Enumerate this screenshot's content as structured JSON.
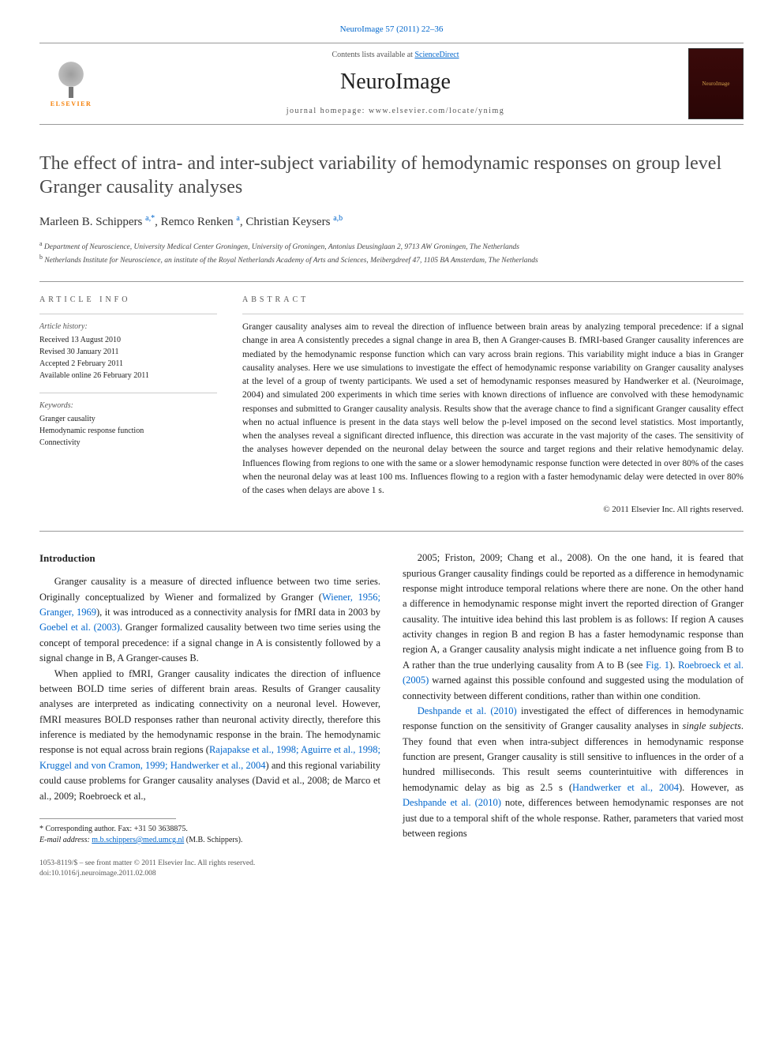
{
  "journal_ref_link": "NeuroImage 57 (2011) 22–36",
  "header": {
    "contents_prefix": "Contents lists available at ",
    "contents_link": "ScienceDirect",
    "journal_name": "NeuroImage",
    "homepage_prefix": "journal homepage: ",
    "homepage_url": "www.elsevier.com/locate/ynimg",
    "elsevier_label": "ELSEVIER",
    "cover_label": "NeuroImage"
  },
  "title": "The effect of intra- and inter-subject variability of hemodynamic responses on group level Granger causality analyses",
  "authors_html": "Marleen B. Schippers <sup>a,*</sup>, Remco Renken <sup>a</sup>, Christian Keysers <sup>a,b</sup>",
  "affiliations": {
    "a": "Department of Neuroscience, University Medical Center Groningen, University of Groningen, Antonius Deusinglaan 2, 9713 AW Groningen, The Netherlands",
    "b": "Netherlands Institute for Neuroscience, an institute of the Royal Netherlands Academy of Arts and Sciences, Meibergdreef 47, 1105 BA Amsterdam, The Netherlands"
  },
  "article_info": {
    "heading": "ARTICLE INFO",
    "history_label": "Article history:",
    "received": "Received 13 August 2010",
    "revised": "Revised 30 January 2011",
    "accepted": "Accepted 2 February 2011",
    "online": "Available online 26 February 2011",
    "keywords_label": "Keywords:",
    "keywords": [
      "Granger causality",
      "Hemodynamic response function",
      "Connectivity"
    ]
  },
  "abstract": {
    "heading": "ABSTRACT",
    "text": "Granger causality analyses aim to reveal the direction of influence between brain areas by analyzing temporal precedence: if a signal change in area A consistently precedes a signal change in area B, then A Granger-causes B. fMRI-based Granger causality inferences are mediated by the hemodynamic response function which can vary across brain regions. This variability might induce a bias in Granger causality analyses. Here we use simulations to investigate the effect of hemodynamic response variability on Granger causality analyses at the level of a group of twenty participants. We used a set of hemodynamic responses measured by Handwerker et al. (Neuroimage, 2004) and simulated 200 experiments in which time series with known directions of influence are convolved with these hemodynamic responses and submitted to Granger causality analysis. Results show that the average chance to find a significant Granger causality effect when no actual influence is present in the data stays well below the p-level imposed on the second level statistics. Most importantly, when the analyses reveal a significant directed influence, this direction was accurate in the vast majority of the cases. The sensitivity of the analyses however depended on the neuronal delay between the source and target regions and their relative hemodynamic delay. Influences flowing from regions to one with the same or a slower hemodynamic response function were detected in over 80% of the cases when the neuronal delay was at least 100 ms. Influences flowing to a region with a faster hemodynamic delay were detected in over 80% of the cases when delays are above 1 s.",
    "copyright": "© 2011 Elsevier Inc. All rights reserved."
  },
  "body": {
    "intro_heading": "Introduction",
    "left": [
      "Granger causality is a measure of directed influence between two time series. Originally conceptualized by Wiener and formalized by Granger (Wiener, 1956; Granger, 1969), it was introduced as a connectivity analysis for fMRI data in 2003 by Goebel et al. (2003). Granger formalized causality between two time series using the concept of temporal precedence: if a signal change in A is consistently followed by a signal change in B, A Granger-causes B.",
      "When applied to fMRI, Granger causality indicates the direction of influence between BOLD time series of different brain areas. Results of Granger causality analyses are interpreted as indicating connectivity on a neuronal level. However, fMRI measures BOLD responses rather than neuronal activity directly, therefore this inference is mediated by the hemodynamic response in the brain. The hemodynamic response is not equal across brain regions (Rajapakse et al., 1998; Aguirre et al., 1998; Kruggel and von Cramon, 1999; Handwerker et al., 2004) and this regional variability could cause problems for Granger causality analyses (David et al., 2008; de Marco et al., 2009; Roebroeck et al.,"
    ],
    "right": [
      "2005; Friston, 2009; Chang et al., 2008). On the one hand, it is feared that spurious Granger causality findings could be reported as a difference in hemodynamic response might introduce temporal relations where there are none. On the other hand a difference in hemodynamic response might invert the reported direction of Granger causality. The intuitive idea behind this last problem is as follows: If region A causes activity changes in region B and region B has a faster hemodynamic response than region A, a Granger causality analysis might indicate a net influence going from B to A rather than the true underlying causality from A to B (see Fig. 1). Roebroeck et al. (2005) warned against this possible confound and suggested using the modulation of connectivity between different conditions, rather than within one condition.",
      "Deshpande et al. (2010) investigated the effect of differences in hemodynamic response function on the sensitivity of Granger causality analyses in single subjects. They found that even when intra-subject differences in hemodynamic response function are present, Granger causality is still sensitive to influences in the order of a hundred milliseconds. This result seems counterintuitive with differences in hemodynamic delay as big as 2.5 s (Handwerker et al., 2004). However, as Deshpande et al. (2010) note, differences between hemodynamic responses are not just due to a temporal shift of the whole response. Rather, parameters that varied most between regions"
    ]
  },
  "footnote": {
    "corr": "* Corresponding author. Fax: +31 50 3638875.",
    "email_label": "E-mail address:",
    "email": "m.b.schippers@med.umcg.nl",
    "email_suffix": "(M.B. Schippers)."
  },
  "bottom": {
    "issn_line": "1053-8119/$ – see front matter © 2011 Elsevier Inc. All rights reserved.",
    "doi_line": "doi:10.1016/j.neuroimage.2011.02.008"
  },
  "colors": {
    "link": "#0066cc",
    "text": "#222222",
    "rule": "#999999",
    "elsevier_orange": "#f57c00"
  }
}
